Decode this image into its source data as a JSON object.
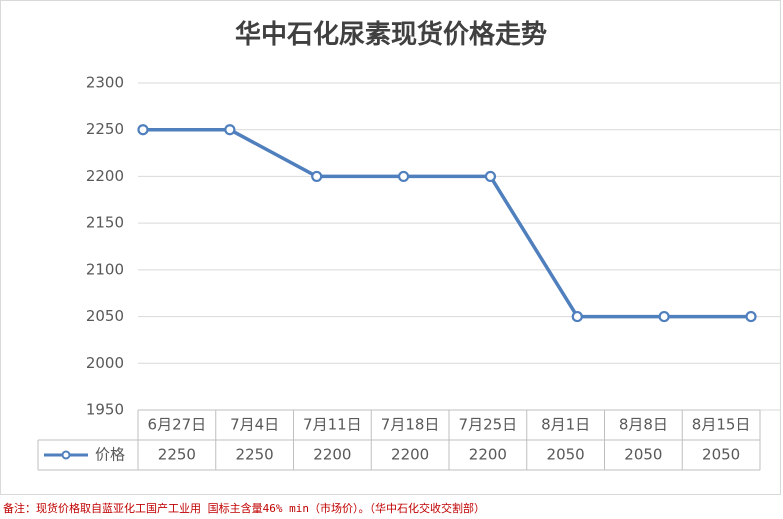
{
  "chart_data": {
    "type": "line",
    "title": "华中石化尿素现货价格走势",
    "categories": [
      "6月27日",
      "7月4日",
      "7月11日",
      "7月18日",
      "7月25日",
      "8月1日",
      "8月8日",
      "8月15日"
    ],
    "series": [
      {
        "name": "价格",
        "color": "#4f7fbd",
        "values": [
          2250,
          2250,
          2200,
          2200,
          2200,
          2050,
          2050,
          2050
        ]
      }
    ],
    "ylim": [
      1950,
      2300
    ],
    "yticks": [
      1950,
      2000,
      2050,
      2100,
      2150,
      2200,
      2250,
      2300
    ],
    "grid": true,
    "data_table": true,
    "note": "备注：现货价格取自蓝亚化工国产工业用 国标主含量46% min（市场价）。（华中石化交收交割部）"
  }
}
